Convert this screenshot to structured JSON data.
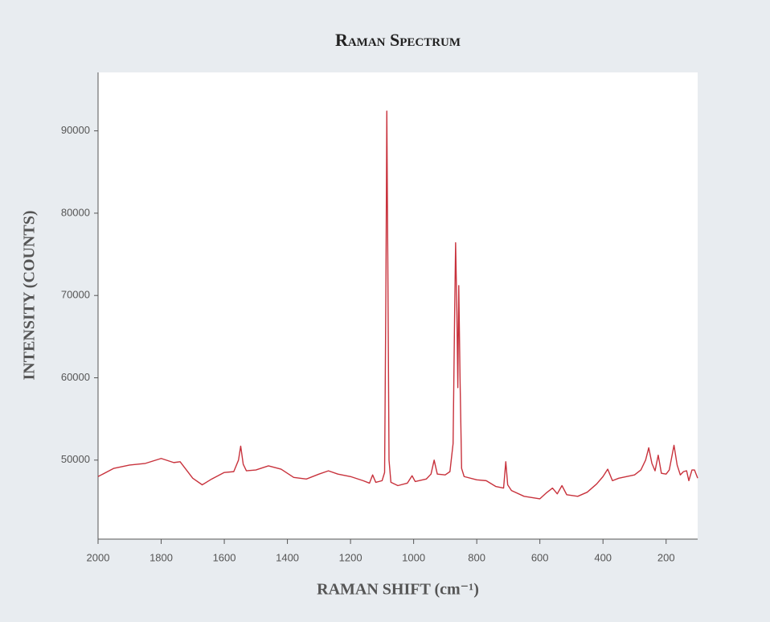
{
  "chart_data": {
    "type": "line",
    "title": "Raman Spectrum",
    "xlabel": "RAMAN SHIFT (cm⁻¹)",
    "ylabel": "INTENSITY (COUNTS)",
    "color": "#c8323c",
    "grid": false,
    "xlim": [
      2000,
      100
    ],
    "ylim": [
      40400,
      97100
    ],
    "xticks": [
      2000,
      1800,
      1600,
      1400,
      1200,
      1000,
      800,
      600,
      400,
      200
    ],
    "yticks": [
      50000,
      60000,
      70000,
      80000,
      90000
    ],
    "x": [
      2000,
      1950,
      1900,
      1850,
      1800,
      1760,
      1740,
      1720,
      1700,
      1670,
      1640,
      1600,
      1570,
      1555,
      1548,
      1540,
      1530,
      1500,
      1460,
      1420,
      1380,
      1340,
      1300,
      1270,
      1240,
      1200,
      1160,
      1140,
      1130,
      1120,
      1100,
      1092,
      1088,
      1085,
      1082,
      1078,
      1072,
      1050,
      1020,
      1005,
      995,
      960,
      945,
      935,
      925,
      900,
      885,
      875,
      870,
      867,
      863,
      860,
      857,
      853,
      848,
      840,
      800,
      770,
      740,
      715,
      708,
      702,
      690,
      650,
      600,
      580,
      560,
      545,
      530,
      515,
      480,
      450,
      420,
      400,
      385,
      370,
      350,
      300,
      280,
      265,
      255,
      245,
      235,
      225,
      215,
      200,
      190,
      175,
      165,
      155,
      145,
      135,
      128,
      118,
      110,
      100
    ],
    "values": [
      48000,
      49000,
      49400,
      49600,
      50200,
      49700,
      49800,
      48800,
      47800,
      47000,
      47700,
      48500,
      48600,
      50000,
      51700,
      49500,
      48700,
      48800,
      49300,
      48900,
      47900,
      47700,
      48300,
      48700,
      48300,
      48000,
      47500,
      47200,
      48200,
      47300,
      47500,
      48500,
      70000,
      92400,
      75000,
      50000,
      47300,
      46900,
      47200,
      48100,
      47400,
      47700,
      48300,
      50000,
      48300,
      48200,
      48600,
      52000,
      68000,
      76400,
      68000,
      58800,
      71200,
      60000,
      49000,
      48000,
      47600,
      47500,
      46800,
      46600,
      49800,
      47000,
      46300,
      45600,
      45300,
      46000,
      46600,
      45900,
      46900,
      45800,
      45600,
      46100,
      47100,
      48000,
      48900,
      47500,
      47800,
      48200,
      48800,
      50000,
      51500,
      49600,
      48700,
      50600,
      48400,
      48300,
      48800,
      51800,
      49400,
      48200,
      48600,
      48700,
      47500,
      48800,
      48800,
      47800
    ]
  }
}
